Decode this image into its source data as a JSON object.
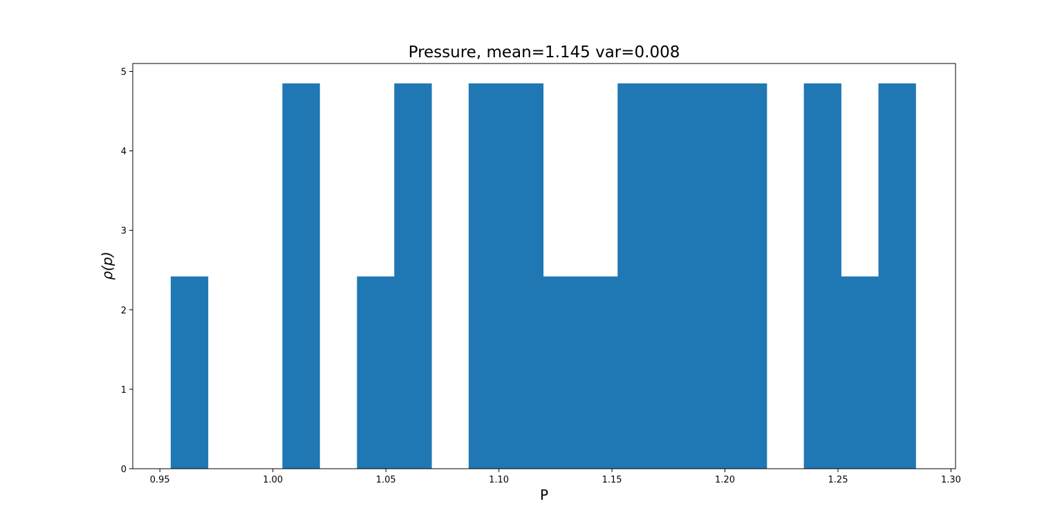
{
  "chart_data": {
    "type": "bar",
    "title": "Pressure, mean=1.145 var=0.008",
    "xlabel": "P",
    "ylabel": "ρ(p)",
    "xlim": [
      0.938,
      1.302
    ],
    "ylim": [
      0,
      5.1
    ],
    "bar_color": "#1f77b4",
    "grid": false,
    "legend": false,
    "bin_width": 0.01648,
    "bins": [
      {
        "x0": 0.9548,
        "value": 2.42
      },
      {
        "x0": 1.0042,
        "value": 4.85
      },
      {
        "x0": 1.0372,
        "value": 2.42
      },
      {
        "x0": 1.0537,
        "value": 4.85
      },
      {
        "x0": 1.0866,
        "value": 4.85
      },
      {
        "x0": 1.1031,
        "value": 4.85
      },
      {
        "x0": 1.1196,
        "value": 2.42
      },
      {
        "x0": 1.1361,
        "value": 2.42
      },
      {
        "x0": 1.1525,
        "value": 4.85
      },
      {
        "x0": 1.169,
        "value": 4.85
      },
      {
        "x0": 1.1855,
        "value": 4.85
      },
      {
        "x0": 1.202,
        "value": 4.85
      },
      {
        "x0": 1.2349,
        "value": 4.85
      },
      {
        "x0": 1.2514,
        "value": 2.42
      },
      {
        "x0": 1.2679,
        "value": 4.85
      }
    ],
    "x_ticks": [
      {
        "value": 0.95,
        "label": "0.95"
      },
      {
        "value": 1.0,
        "label": "1.00"
      },
      {
        "value": 1.05,
        "label": "1.05"
      },
      {
        "value": 1.1,
        "label": "1.10"
      },
      {
        "value": 1.15,
        "label": "1.15"
      },
      {
        "value": 1.2,
        "label": "1.20"
      },
      {
        "value": 1.25,
        "label": "1.25"
      },
      {
        "value": 1.3,
        "label": "1.30"
      }
    ],
    "y_ticks": [
      {
        "value": 0,
        "label": "0"
      },
      {
        "value": 1,
        "label": "1"
      },
      {
        "value": 2,
        "label": "2"
      },
      {
        "value": 3,
        "label": "3"
      },
      {
        "value": 4,
        "label": "4"
      },
      {
        "value": 5,
        "label": "5"
      }
    ]
  }
}
